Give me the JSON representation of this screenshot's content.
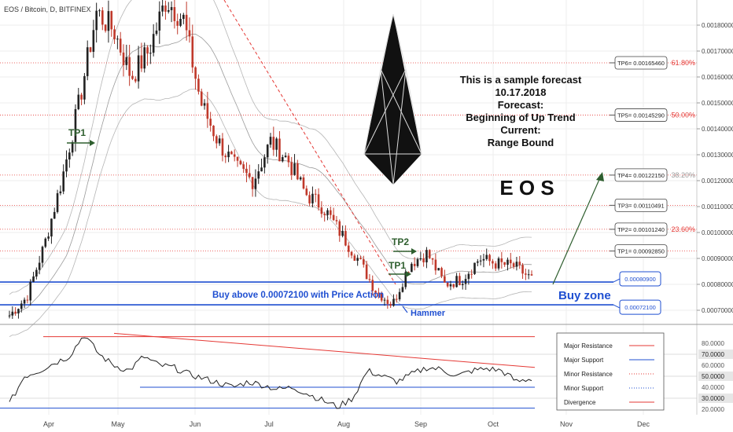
{
  "symbol_title": "EOS / Bitcoin, D, BITFINEX",
  "forecast_text": [
    "This is a sample forecast",
    "10.17.2018",
    "Forecast:",
    "Beginning of Up Trend",
    "Current:",
    "Range Bound"
  ],
  "coin_name": "E O S",
  "buy_text": "Buy above 0.00072100 with Price Action",
  "buy_zone_label": "Buy zone",
  "hammer_label": "Hammer",
  "tp1_left_label": "TP1",
  "tp1_label": "TP1",
  "tp2_label": "TP2",
  "colors": {
    "up": "#222222",
    "down": "#c0392b",
    "blue": "#1f4fd1",
    "red": "#e53935",
    "green": "#2e5e2e",
    "grid": "#eeeeee"
  },
  "chart_data": [
    {
      "type": "candlestick",
      "x_ticks": [
        "Apr",
        "May",
        "Jun",
        "Jul",
        "Aug",
        "Sep",
        "Oct",
        "Nov",
        "Dec"
      ],
      "ylim": [
        0.00065,
        0.0019
      ],
      "y_ticks": [
        "0.00180000",
        "0.00170000",
        "0.00160000",
        "0.00150000",
        "0.00140000",
        "0.00130000",
        "0.00120000",
        "0.00110000",
        "0.00100000",
        "0.00090000",
        "0.00080000",
        "0.00070000"
      ],
      "price_path_approx": [
        0.00068,
        0.00075,
        0.00095,
        0.0012,
        0.0015,
        0.00185,
        0.00178,
        0.0016,
        0.0017,
        0.0019,
        0.00182,
        0.0015,
        0.00135,
        0.00125,
        0.0012,
        0.00135,
        0.00128,
        0.00115,
        0.0011,
        0.001,
        0.0009,
        0.00078,
        0.00072,
        0.00088,
        0.00092,
        0.0008,
        0.00082,
        0.0009,
        0.00088,
        0.00087,
        0.00082
      ],
      "targets": [
        {
          "label": "TP6= 0.00165460",
          "value": 0.0016546,
          "fib": "61.80%"
        },
        {
          "label": "TP5= 0.00145290",
          "value": 0.0014529,
          "fib": "50.00%"
        },
        {
          "label": "TP4= 0.00122150",
          "value": 0.0012215,
          "fib": "38.20%"
        },
        {
          "label": "TP3= 0.00110491",
          "value": 0.00110491,
          "fib": ""
        },
        {
          "label": "TP2= 0.00101240",
          "value": 0.0010124,
          "fib": "23.60%"
        },
        {
          "label": "TP1= 0.00092850",
          "value": 0.0009285,
          "fib": ""
        }
      ],
      "support_levels": [
        {
          "label": "0.00080900",
          "value": 0.000809
        },
        {
          "label": "0.00072100",
          "value": 0.000721
        }
      ]
    },
    {
      "type": "line",
      "ylim": [
        15,
        90
      ],
      "y_ticks": [
        "80.0000",
        "70.0000",
        "60.0000",
        "50.0000",
        "40.0000",
        "30.0000",
        "20.0000"
      ],
      "rsi_path_approx": [
        25,
        50,
        55,
        62,
        68,
        88,
        70,
        60,
        55,
        68,
        60,
        58,
        52,
        48,
        44,
        40,
        45,
        42,
        38,
        40,
        34,
        28,
        22,
        30,
        55,
        50,
        45,
        52,
        58,
        56,
        50,
        55,
        57,
        55,
        45,
        48
      ],
      "reference_lines": [
        {
          "value": 70,
          "label": "70.0000"
        },
        {
          "value": 50,
          "label": "50.0000"
        },
        {
          "value": 30,
          "label": "30.0000"
        }
      ],
      "legend": [
        "Major Resistance",
        "Major Support",
        "Minor Resistance",
        "Minor Support",
        "Divergence"
      ]
    }
  ]
}
